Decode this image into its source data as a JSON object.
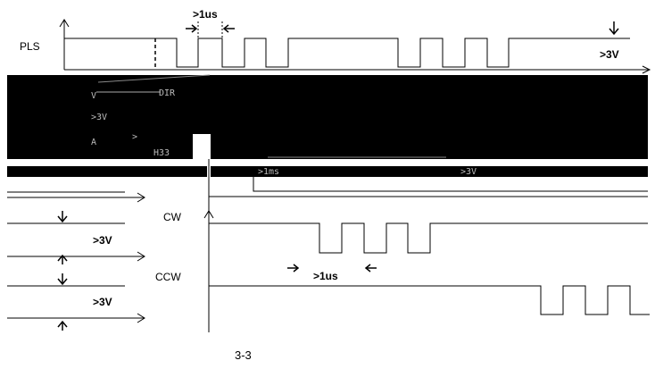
{
  "chart_data": {
    "type": "timing-diagram",
    "signals": [
      {
        "name": "PLS",
        "label": "PLS"
      },
      {
        "name": "DIR",
        "label": "DIR"
      },
      {
        "name": "CW",
        "label": "CW"
      },
      {
        "name": "CCW",
        "label": "CCW"
      }
    ],
    "annotations": {
      "pls_pulse_width": ">1us",
      "pls_level": ">3V",
      "dir_level": ">3V",
      "dir_setup": ">1ms",
      "dir_level_right": ">3V",
      "dir_partial_label": "H33",
      "cw_level": ">3V",
      "ccw_pulse_width": ">1us",
      "ccw_level": ">3V"
    },
    "caption": "3-3"
  }
}
